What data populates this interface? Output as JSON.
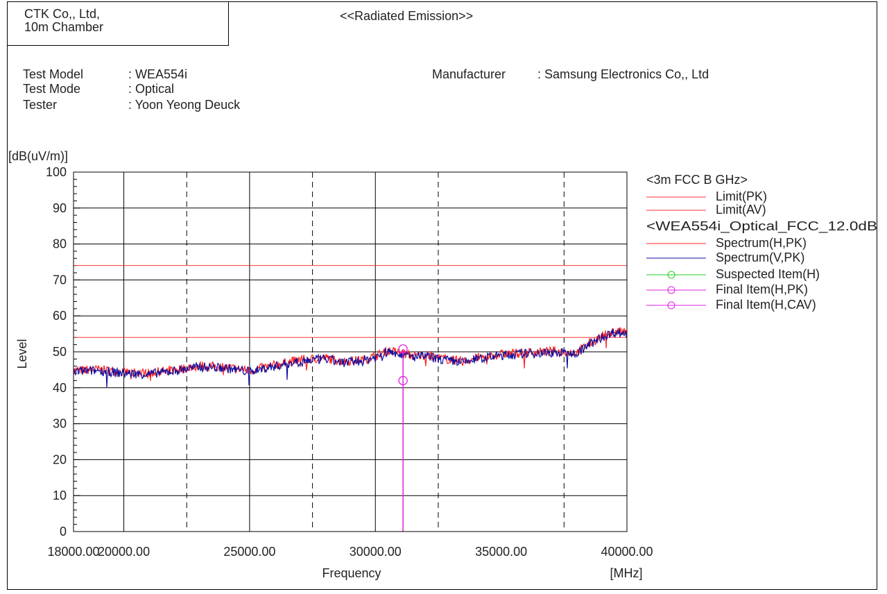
{
  "header": {
    "company_line1": "CTK Co,, Ltd,",
    "company_line2": "10m Chamber",
    "title": "<<Radiated Emission>>"
  },
  "info": {
    "test_model_label": "Test Model",
    "test_model_value": ": WEA554i",
    "test_mode_label": "Test Mode",
    "test_mode_value": ": Optical",
    "tester_label": "Tester",
    "tester_value": ": Yoon Yeong Deuck",
    "manufacturer_label": "Manufacturer",
    "manufacturer_value": ": Samsung Electronics Co,, Ltd"
  },
  "colors": {
    "limit": "#ff3333",
    "spectrum_h": "#ff2020",
    "spectrum_v": "#1010a0",
    "suspected": "#22cc22",
    "final": "#e020e0"
  },
  "chart_data": {
    "type": "line",
    "unit_label": "[dB(uV/m)]",
    "ylabel": "Level",
    "xlabel": "Frequency",
    "x_unit_label": "[MHz]",
    "xlim": [
      18000,
      40000
    ],
    "ylim": [
      0,
      100
    ],
    "y_ticks": [
      0,
      10,
      20,
      30,
      40,
      50,
      60,
      70,
      80,
      90,
      100
    ],
    "y_tick_labels": [
      "0",
      "10",
      "20",
      "30",
      "40",
      "50",
      "60",
      "70",
      "80",
      "90",
      "100"
    ],
    "x_tick_labels": [
      {
        "value": 18000,
        "label": "18000.00"
      },
      {
        "value": 20000,
        "label": "20000.00"
      },
      {
        "value": 25000,
        "label": "25000.00"
      },
      {
        "value": 30000,
        "label": "30000.00"
      },
      {
        "value": 35000,
        "label": "35000.00"
      },
      {
        "value": 40000,
        "label": "40000.00"
      }
    ],
    "solid_gridlines_x": [
      20000,
      25000,
      30000,
      40000
    ],
    "dashed_gridlines_x": [
      22500,
      27500,
      32500,
      37500
    ],
    "grid": true,
    "legend_position": "right",
    "legend": {
      "group1_title": "<3m FCC B GHz>",
      "limit_pk": "Limit(PK)",
      "limit_av": "Limit(AV)",
      "group2_title": "<WEA554i_Optical_FCC_12.0dB",
      "spectrum_h_pk": "Spectrum(H,PK)",
      "spectrum_v_pk": "Spectrum(V,PK)",
      "suspected_h": "Suspected Item(H)",
      "final_h_pk": "Final Item(H,PK)",
      "final_h_cav": "Final Item(H,CAV)"
    },
    "limits": {
      "pk": 74,
      "av": 54
    },
    "spectrum_envelope": {
      "x": [
        18000,
        19000,
        20000,
        21000,
        22000,
        23000,
        24000,
        25000,
        26000,
        27000,
        28000,
        28700,
        29500,
        30000,
        30500,
        31000,
        31500,
        32000,
        32500,
        33000,
        33500,
        34000,
        35000,
        36000,
        37000,
        38000,
        38500,
        39000,
        39500,
        40000
      ],
      "y": [
        44.5,
        44.8,
        44.0,
        43.8,
        44.7,
        45.8,
        45.5,
        44.5,
        46.0,
        47.5,
        48.0,
        47.0,
        47.5,
        48.5,
        50.0,
        49.5,
        48.5,
        48.8,
        48.0,
        47.5,
        47.0,
        48.0,
        49.0,
        49.5,
        49.8,
        49.5,
        52.0,
        54.0,
        55.5,
        55.0
      ]
    },
    "final_items": [
      {
        "freq": 31100,
        "pk": 50.8,
        "cav": 42.0
      }
    ]
  }
}
